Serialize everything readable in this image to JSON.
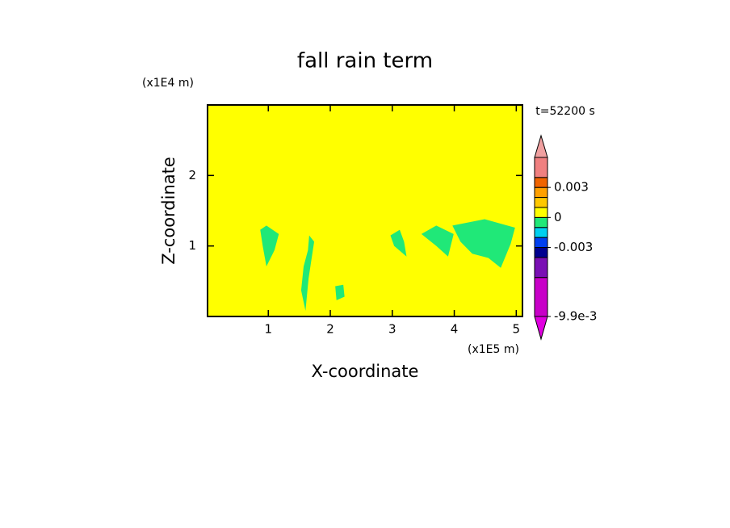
{
  "chart_data": {
    "type": "filled-contour",
    "title": "fall rain term",
    "x_label": "X-coordinate",
    "y_label": "Z-coordinate",
    "x_unit": "(x1E5 m)",
    "y_unit": "(x1E4 m)",
    "time_label": "t=52200 s",
    "xlim": [
      0.02,
      5.1
    ],
    "ylim": [
      0,
      3
    ],
    "xticks": [
      1,
      2,
      3,
      4,
      5
    ],
    "yticks": [
      1,
      2
    ],
    "background_color": "#ffff00",
    "patch_color": "#20e878",
    "patches": [
      {
        "x": [
          0.87,
          0.97,
          1.17,
          1.1,
          0.97,
          0.91
        ],
        "z": [
          1.23,
          1.29,
          1.17,
          0.94,
          0.71,
          1.0
        ]
      },
      {
        "x": [
          1.66,
          1.74,
          1.7,
          1.65,
          1.6,
          1.53,
          1.57,
          1.64
        ],
        "z": [
          1.15,
          1.06,
          0.83,
          0.54,
          0.08,
          0.37,
          0.71,
          0.94
        ]
      },
      {
        "x": [
          2.08,
          2.21,
          2.23,
          2.1
        ],
        "z": [
          0.43,
          0.45,
          0.28,
          0.23
        ]
      },
      {
        "x": [
          2.97,
          3.12,
          3.19,
          3.23,
          3.03
        ],
        "z": [
          1.15,
          1.23,
          1.06,
          0.85,
          1.0
        ]
      },
      {
        "x": [
          3.47,
          3.71,
          3.99,
          3.9,
          3.71
        ],
        "z": [
          1.17,
          1.29,
          1.17,
          0.85,
          1.0
        ]
      },
      {
        "x": [
          3.97,
          4.49,
          4.98,
          4.91,
          4.75,
          4.55,
          4.29,
          4.1
        ],
        "z": [
          1.29,
          1.38,
          1.26,
          1.03,
          0.69,
          0.83,
          0.89,
          1.06
        ]
      }
    ],
    "colorbar": {
      "levels": [
        -0.0099,
        -0.006,
        -0.004,
        -0.003,
        -0.002,
        -0.001,
        0,
        0.001,
        0.002,
        0.003,
        0.004,
        0.006
      ],
      "colors": [
        "#c800c8",
        "#7a10b4",
        "#000090",
        "#0040f0",
        "#00d0f0",
        "#20e878",
        "#ffff00",
        "#ffc800",
        "#ffa000",
        "#f06400",
        "#f08080"
      ],
      "low_color": "#e000e0",
      "high_color": "#f0a0a0",
      "ticks": [
        {
          "value": -0.0099,
          "label": "-9.9e-3"
        },
        -0.003,
        0,
        0.003
      ]
    }
  }
}
